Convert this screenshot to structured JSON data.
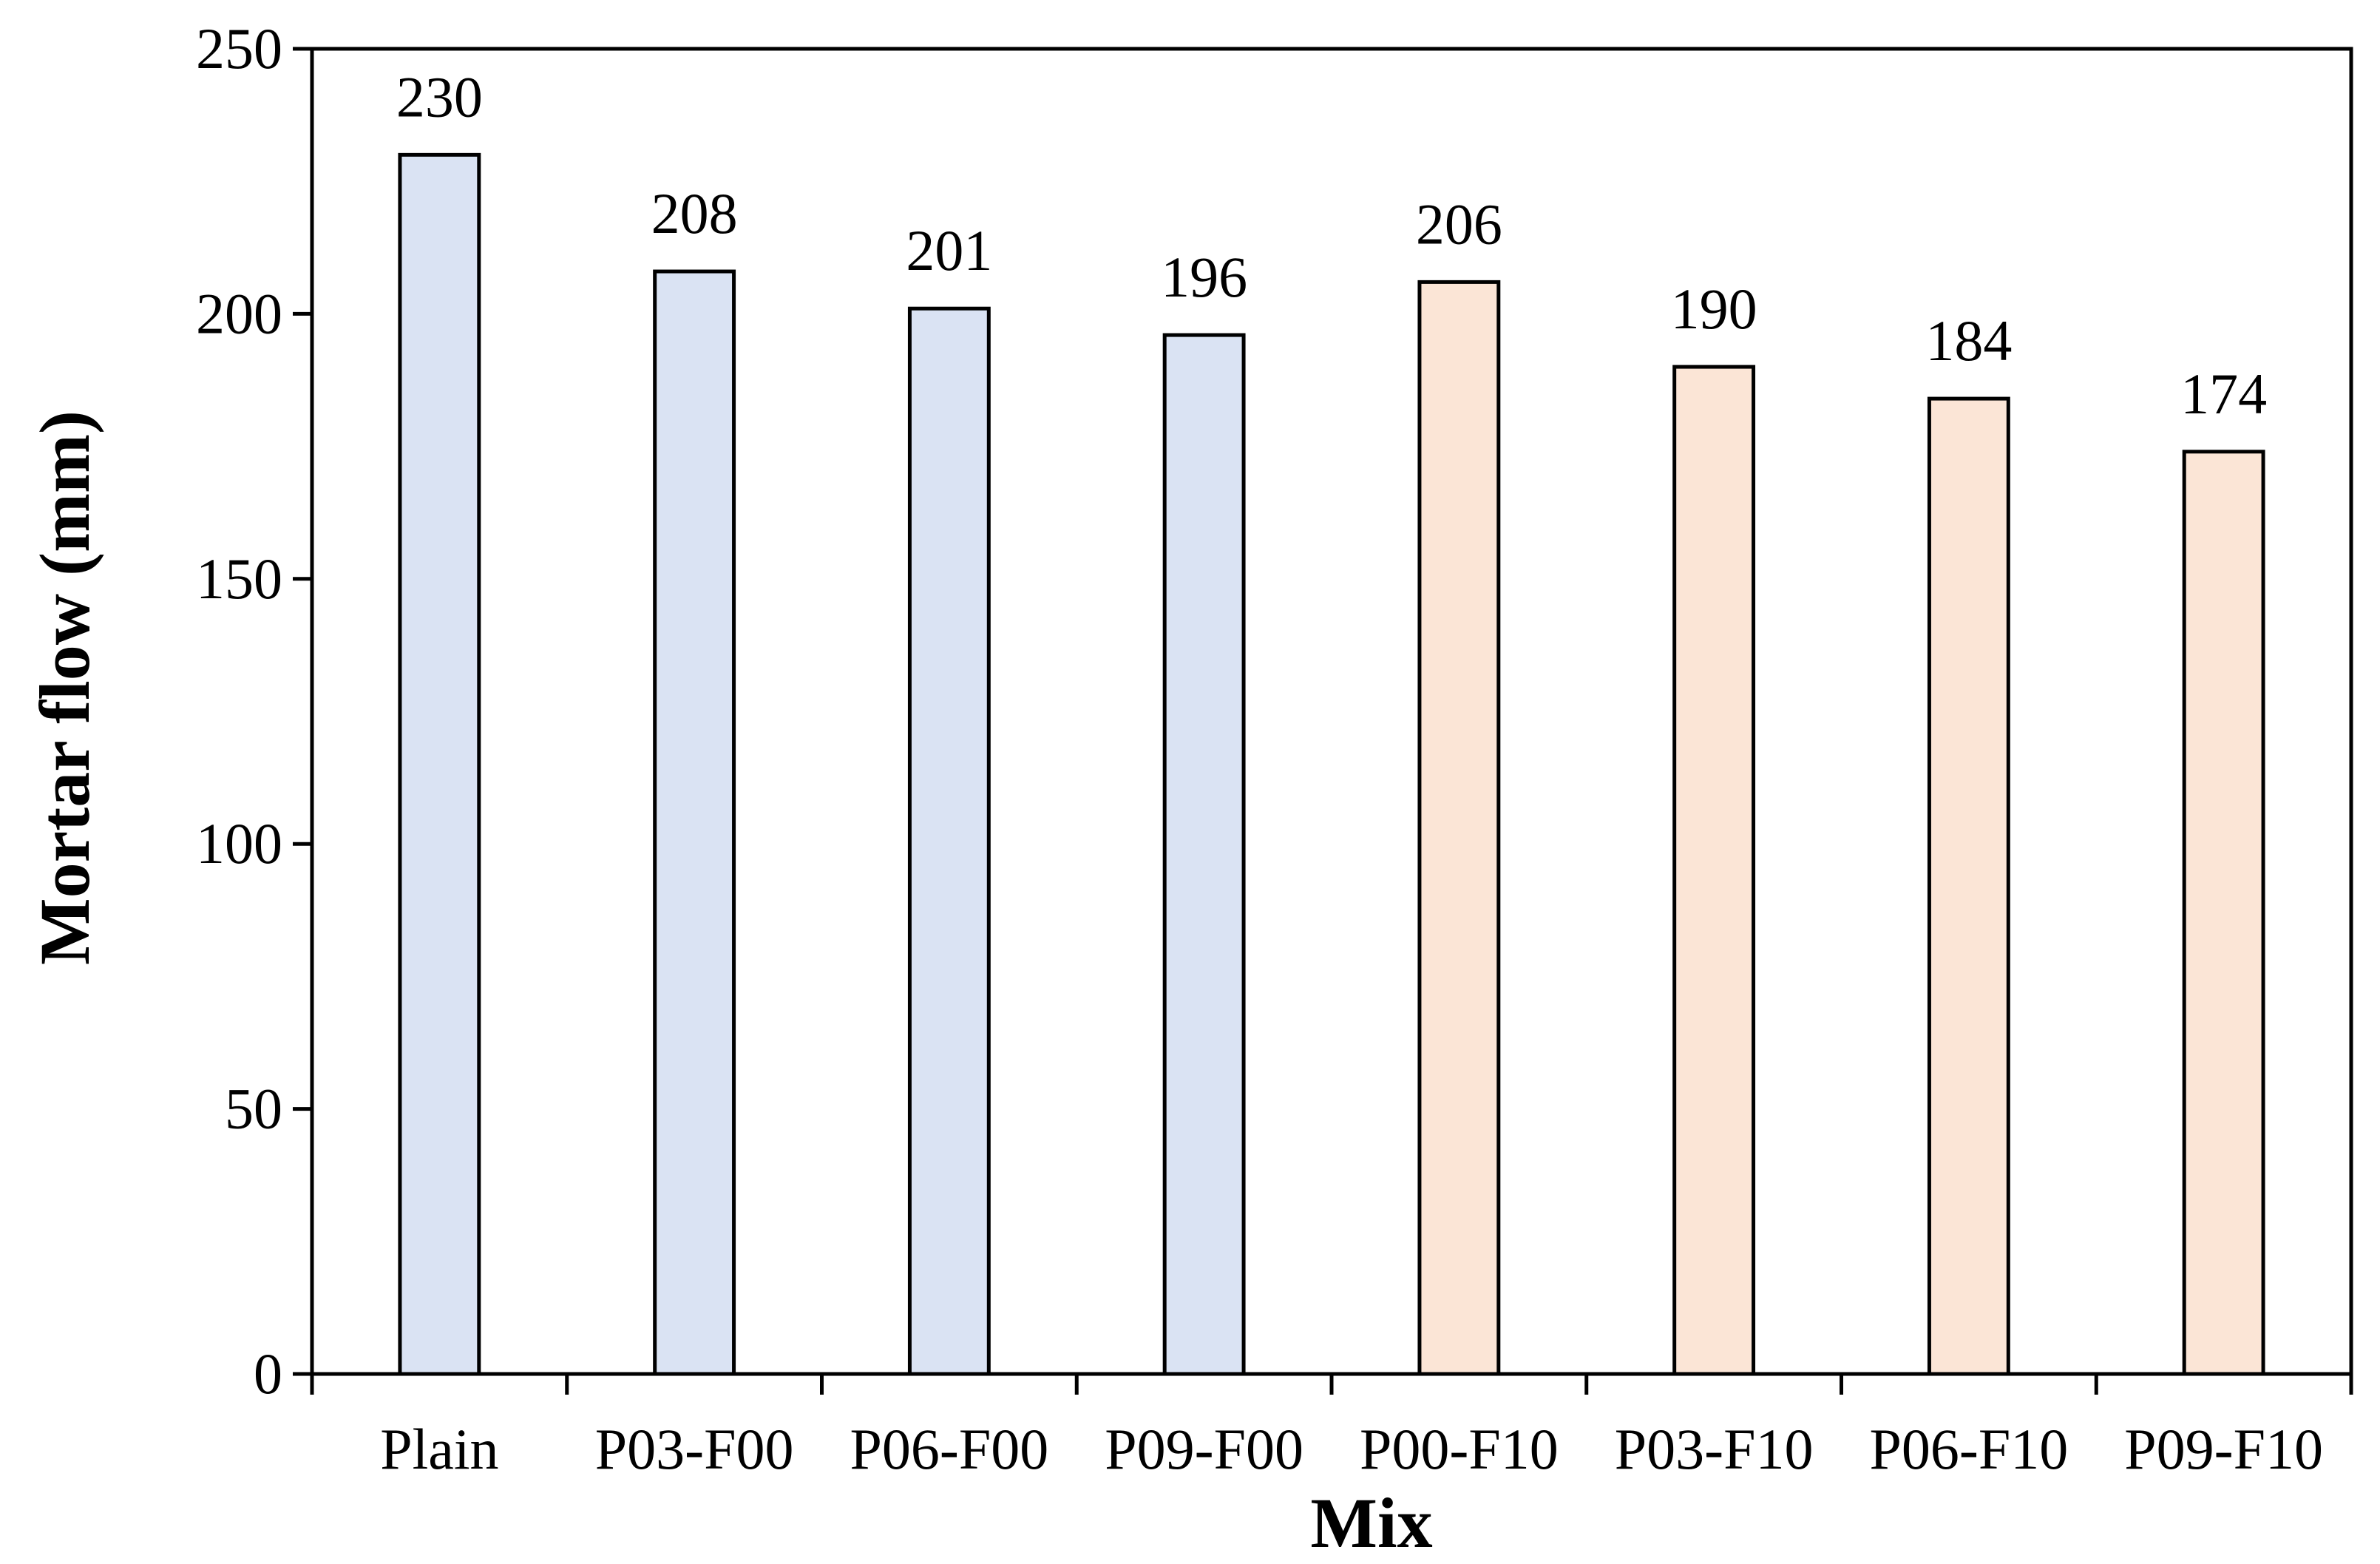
{
  "chart_data": {
    "type": "bar",
    "categories": [
      "Plain",
      "P03-F00",
      "P06-F00",
      "P09-F00",
      "P00-F10",
      "P03-F10",
      "P06-F10",
      "P09-F10"
    ],
    "values": [
      230,
      208,
      201,
      196,
      206,
      190,
      184,
      174
    ],
    "data_labels": [
      "230",
      "208",
      "201",
      "196",
      "206",
      "190",
      "184",
      "174"
    ],
    "bar_colors": [
      "#dae3f3",
      "#dae3f3",
      "#dae3f3",
      "#dae3f3",
      "#fbe5d6",
      "#fbe5d6",
      "#fbe5d6",
      "#fbe5d6"
    ],
    "bar_edge_color": "#000000",
    "xlabel": "Mix",
    "ylabel": "Mortar flow (mm)",
    "ylim": [
      0,
      250
    ],
    "yticks": [
      0,
      50,
      100,
      150,
      200,
      250
    ],
    "ytick_labels": [
      "0",
      "50",
      "100",
      "150",
      "200",
      "250"
    ],
    "grid": false,
    "legend": "none"
  }
}
